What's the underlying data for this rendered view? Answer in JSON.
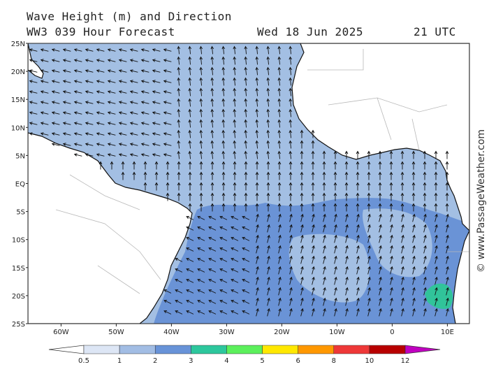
{
  "header": {
    "title": "Wave Height (m) and Direction",
    "model": "WW3 039 Hour Forecast",
    "date": "Wed 18 Jun 2025",
    "time": "21 UTC"
  },
  "watermark": "© www.PassageWeather.com",
  "map": {
    "lat_range": [
      -25,
      25
    ],
    "lon_range": [
      -66,
      14
    ],
    "lat_ticks": [
      "25N",
      "20N",
      "15N",
      "10N",
      "5N",
      "EQ",
      "5S",
      "10S",
      "15S",
      "20S",
      "25S"
    ],
    "lon_ticks": [
      "60W",
      "50W",
      "40W",
      "30W",
      "20W",
      "10W",
      "0",
      "10E"
    ]
  },
  "legend": {
    "values": [
      "0.5",
      "1",
      "2",
      "3",
      "4",
      "5",
      "6",
      "8",
      "10",
      "12"
    ],
    "colors": [
      "#ffffff",
      "#dde6f5",
      "#a2bde4",
      "#6893d8",
      "#2dc79d",
      "#5cf05c",
      "#ffe800",
      "#ff9800",
      "#ee3838",
      "#b80000",
      "#c000c0"
    ]
  },
  "colors": {
    "sea_light": "#a3bfe3",
    "sea_mid": "#6a93d6",
    "sea_teal": "#31c49a",
    "land": "#ffffff",
    "coast": "#111111",
    "border": "#b8b8b8"
  }
}
